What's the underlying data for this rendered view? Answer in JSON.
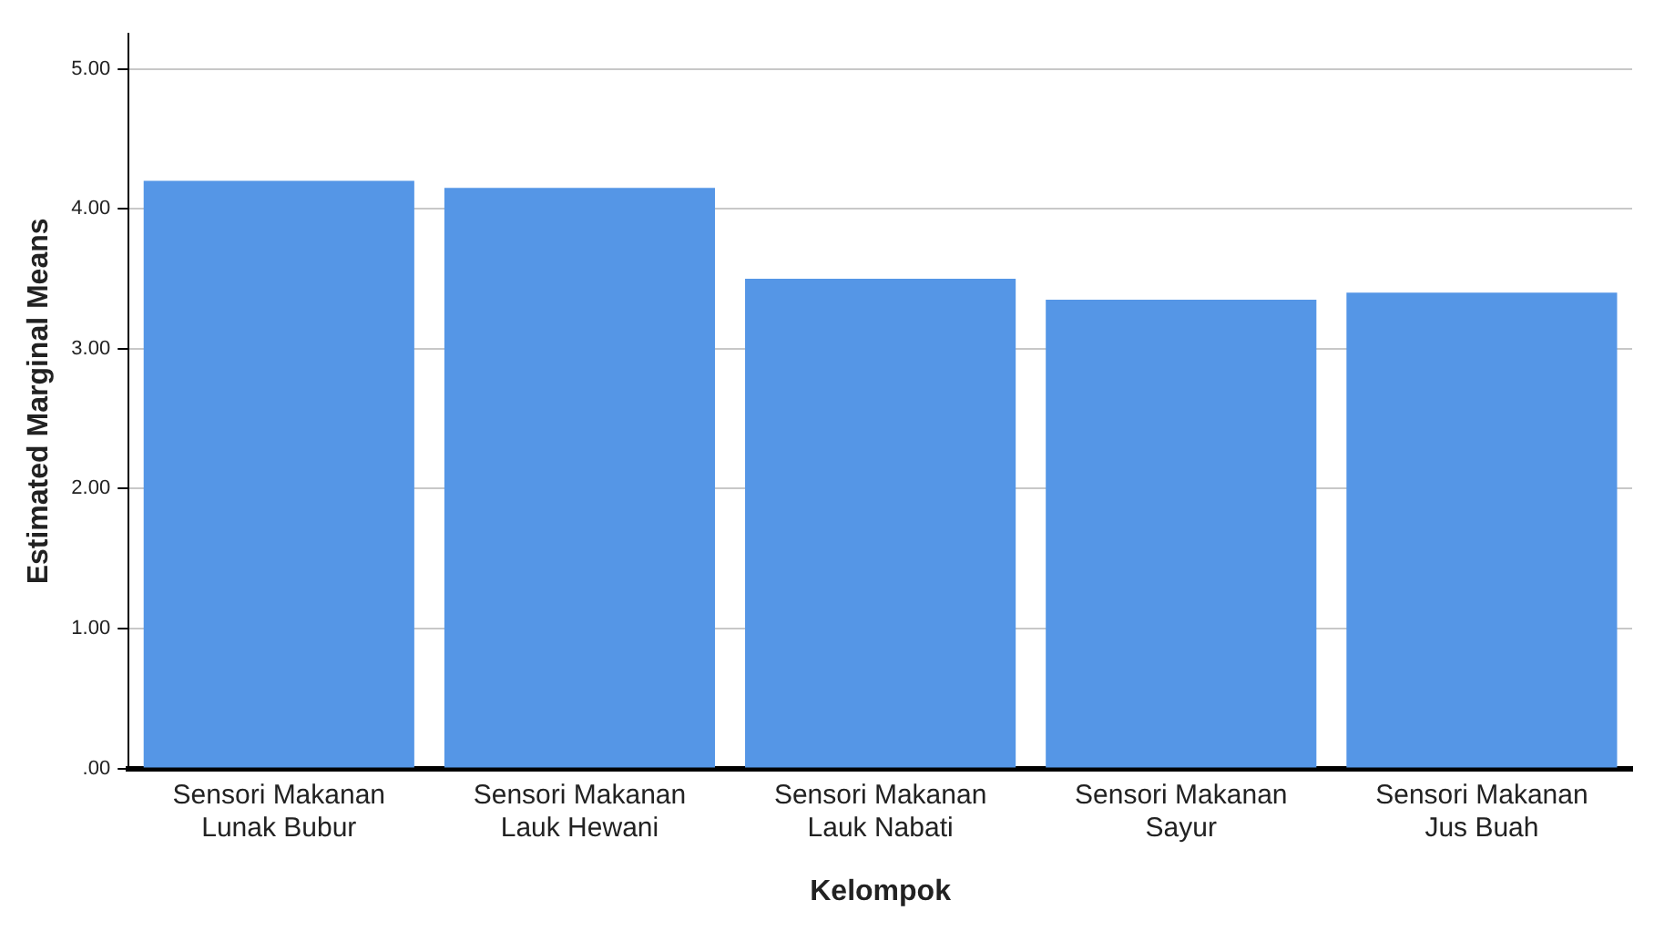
{
  "chart_data": {
    "type": "bar",
    "xlabel": "Kelompok",
    "ylabel": "Estimated Marginal Means",
    "categories": [
      "Sensori Makanan\nLunak Bubur",
      "Sensori Makanan\nLauk Hewani",
      "Sensori Makanan\nLauk Nabati",
      "Sensori Makanan\nSayur",
      "Sensori Makanan\nJus Buah"
    ],
    "values": [
      4.2,
      4.15,
      3.5,
      3.35,
      3.4
    ],
    "color": "#5596e6",
    "ylim": [
      0,
      5.25
    ],
    "yticks": [
      {
        "value": 0,
        "label": ".00"
      },
      {
        "value": 1,
        "label": "1.00"
      },
      {
        "value": 2,
        "label": "2.00"
      },
      {
        "value": 3,
        "label": "3.00"
      },
      {
        "value": 4,
        "label": "4.00"
      },
      {
        "value": 5,
        "label": "5.00"
      }
    ],
    "grid": "y",
    "legend": false
  }
}
